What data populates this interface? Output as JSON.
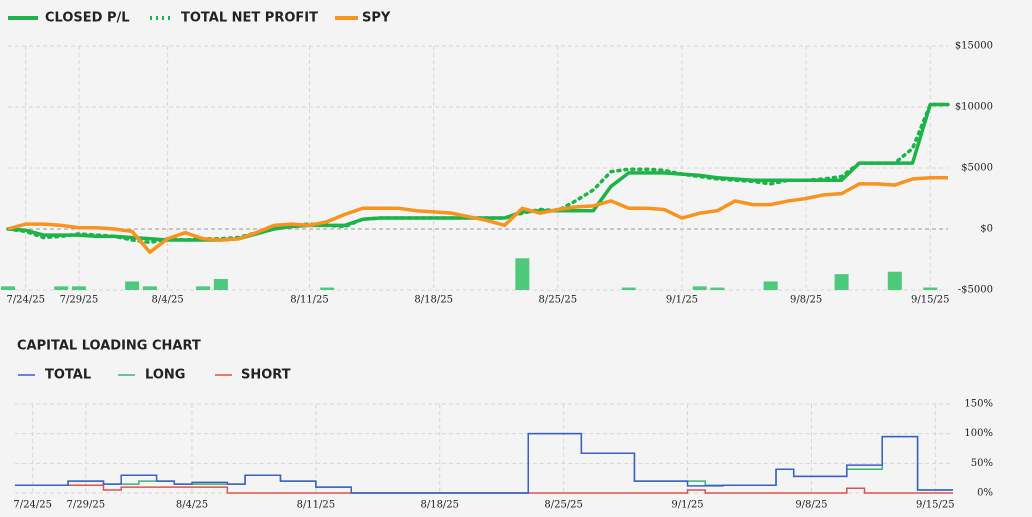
{
  "chart_data": [
    {
      "type": "line",
      "categories": [
        null,
        "7/24/25",
        null,
        null,
        "7/29/25",
        null,
        null,
        null,
        null,
        "8/4/25",
        null,
        null,
        null,
        null,
        null,
        null,
        null,
        "8/11/25",
        null,
        null,
        null,
        null,
        null,
        null,
        "8/18/25",
        null,
        null,
        null,
        null,
        null,
        null,
        "8/25/25",
        null,
        null,
        null,
        null,
        null,
        null,
        "9/1/25",
        null,
        null,
        null,
        null,
        null,
        null,
        "9/8/25",
        null,
        null,
        null,
        null,
        null,
        null,
        "9/15/25",
        null
      ],
      "series": [
        {
          "name": "CLOSED P/L",
          "color": "#1db34a",
          "line_style": "solid",
          "values": [
            0,
            -100,
            -500,
            -500,
            -500,
            -600,
            -600,
            -700,
            -800,
            -900,
            -900,
            -900,
            -900,
            -800,
            -400,
            0,
            200,
            300,
            300,
            300,
            800,
            900,
            900,
            900,
            900,
            900,
            900,
            900,
            900,
            1400,
            1500,
            1500,
            1500,
            1500,
            3500,
            4600,
            4600,
            4600,
            4500,
            4400,
            4200,
            4100,
            4000,
            4000,
            4000,
            4000,
            4000,
            4000,
            5400,
            5400,
            5400,
            5400,
            10200,
            10200
          ]
        },
        {
          "name": "TOTAL NET PROFIT",
          "color": "#1db34a",
          "line_style": "dotted",
          "values": [
            0,
            -200,
            -700,
            -600,
            -400,
            -500,
            -600,
            -900,
            -1100,
            -800,
            -900,
            -800,
            -800,
            -700,
            -300,
            0,
            300,
            400,
            300,
            200,
            800,
            900,
            900,
            900,
            900,
            900,
            900,
            900,
            900,
            1300,
            1600,
            1500,
            2300,
            3200,
            4700,
            4900,
            4900,
            4800,
            4500,
            4300,
            4100,
            4000,
            3900,
            3700,
            4000,
            4000,
            4100,
            4300,
            5400,
            5400,
            5400,
            6600,
            10200,
            10200
          ]
        },
        {
          "name": "SPY",
          "color": "#f7931e",
          "line_style": "solid",
          "values": [
            0,
            400,
            400,
            300,
            100,
            100,
            0,
            -200,
            -1900,
            -800,
            -300,
            -800,
            -900,
            -800,
            -300,
            300,
            400,
            300,
            600,
            1200,
            1700,
            1700,
            1700,
            1500,
            1400,
            1300,
            1000,
            700,
            300,
            1700,
            1300,
            1600,
            1800,
            1900,
            2300,
            1700,
            1700,
            1600,
            900,
            1300,
            1500,
            2300,
            2000,
            2000,
            2300,
            2500,
            2800,
            2900,
            3700,
            3700,
            3600,
            4100,
            4200,
            4200
          ]
        },
        {
          "type": "bar",
          "color": "#4cc97a",
          "values": [
            -4700,
            null,
            null,
            -4700,
            -4700,
            null,
            null,
            -4300,
            -4700,
            null,
            null,
            -4700,
            -4100,
            null,
            null,
            null,
            null,
            null,
            -4800,
            null,
            null,
            null,
            null,
            null,
            null,
            null,
            null,
            null,
            null,
            -2400,
            null,
            null,
            null,
            null,
            null,
            -4800,
            null,
            null,
            null,
            -4700,
            -4800,
            null,
            null,
            -4300,
            null,
            null,
            null,
            -3700,
            null,
            null,
            -3500,
            null,
            -4800,
            null
          ]
        }
      ],
      "ylim": [
        -5000,
        15000
      ],
      "yticks": [
        {
          "value": 15000,
          "label": "$15000"
        },
        {
          "value": 10000,
          "label": "$10000"
        },
        {
          "value": 5000,
          "label": "$5000"
        },
        {
          "value": 0,
          "label": "$0"
        },
        {
          "value": -5000,
          "label": "-$5000"
        }
      ],
      "grid": true
    },
    {
      "type": "step",
      "title": "CAPITAL LOADING CHART",
      "categories": [
        null,
        "7/24/25",
        null,
        null,
        "7/29/25",
        null,
        null,
        null,
        null,
        null,
        "8/4/25",
        null,
        null,
        null,
        null,
        null,
        null,
        "8/11/25",
        null,
        null,
        null,
        null,
        null,
        null,
        "8/18/25",
        null,
        null,
        null,
        null,
        null,
        null,
        "8/25/25",
        null,
        null,
        null,
        null,
        null,
        null,
        "9/1/25",
        null,
        null,
        null,
        null,
        null,
        null,
        "9/8/25",
        null,
        null,
        null,
        null,
        null,
        null,
        "9/15/25"
      ],
      "series": [
        {
          "name": "TOTAL",
          "color": "#3a5fc8",
          "values": [
            13,
            13,
            13,
            20,
            20,
            15,
            30,
            30,
            20,
            15,
            18,
            18,
            15,
            30,
            30,
            20,
            20,
            10,
            10,
            0,
            0,
            0,
            0,
            0,
            0,
            0,
            0,
            0,
            0,
            100,
            100,
            100,
            67,
            67,
            67,
            20,
            20,
            20,
            12,
            12,
            13,
            13,
            13,
            40,
            28,
            28,
            28,
            47,
            47,
            95,
            95,
            5,
            5
          ]
        },
        {
          "name": "LONG",
          "color": "#3cb371",
          "values": [
            13,
            13,
            13,
            20,
            20,
            15,
            15,
            20,
            20,
            15,
            15,
            15,
            15,
            30,
            30,
            20,
            20,
            10,
            10,
            0,
            0,
            0,
            0,
            0,
            0,
            0,
            0,
            0,
            0,
            100,
            100,
            100,
            67,
            67,
            67,
            20,
            20,
            20,
            20,
            13,
            13,
            13,
            13,
            40,
            28,
            28,
            28,
            40,
            40,
            95,
            95,
            5,
            5
          ]
        },
        {
          "name": "SHORT",
          "color": "#d9534f",
          "values": [
            13,
            13,
            13,
            13,
            13,
            5,
            10,
            10,
            10,
            10,
            10,
            10,
            0,
            0,
            0,
            0,
            0,
            0,
            0,
            0,
            0,
            0,
            0,
            0,
            0,
            0,
            0,
            0,
            0,
            0,
            0,
            0,
            0,
            0,
            0,
            0,
            0,
            0,
            5,
            0,
            0,
            0,
            0,
            0,
            0,
            0,
            0,
            8,
            0,
            0,
            0,
            0,
            0
          ]
        }
      ],
      "ylim": [
        0,
        150
      ],
      "yticks": [
        {
          "value": 150,
          "label": "150%"
        },
        {
          "value": 100,
          "label": "100%"
        },
        {
          "value": 50,
          "label": "50%"
        },
        {
          "value": 0,
          "label": "0%"
        }
      ],
      "grid": true
    }
  ]
}
